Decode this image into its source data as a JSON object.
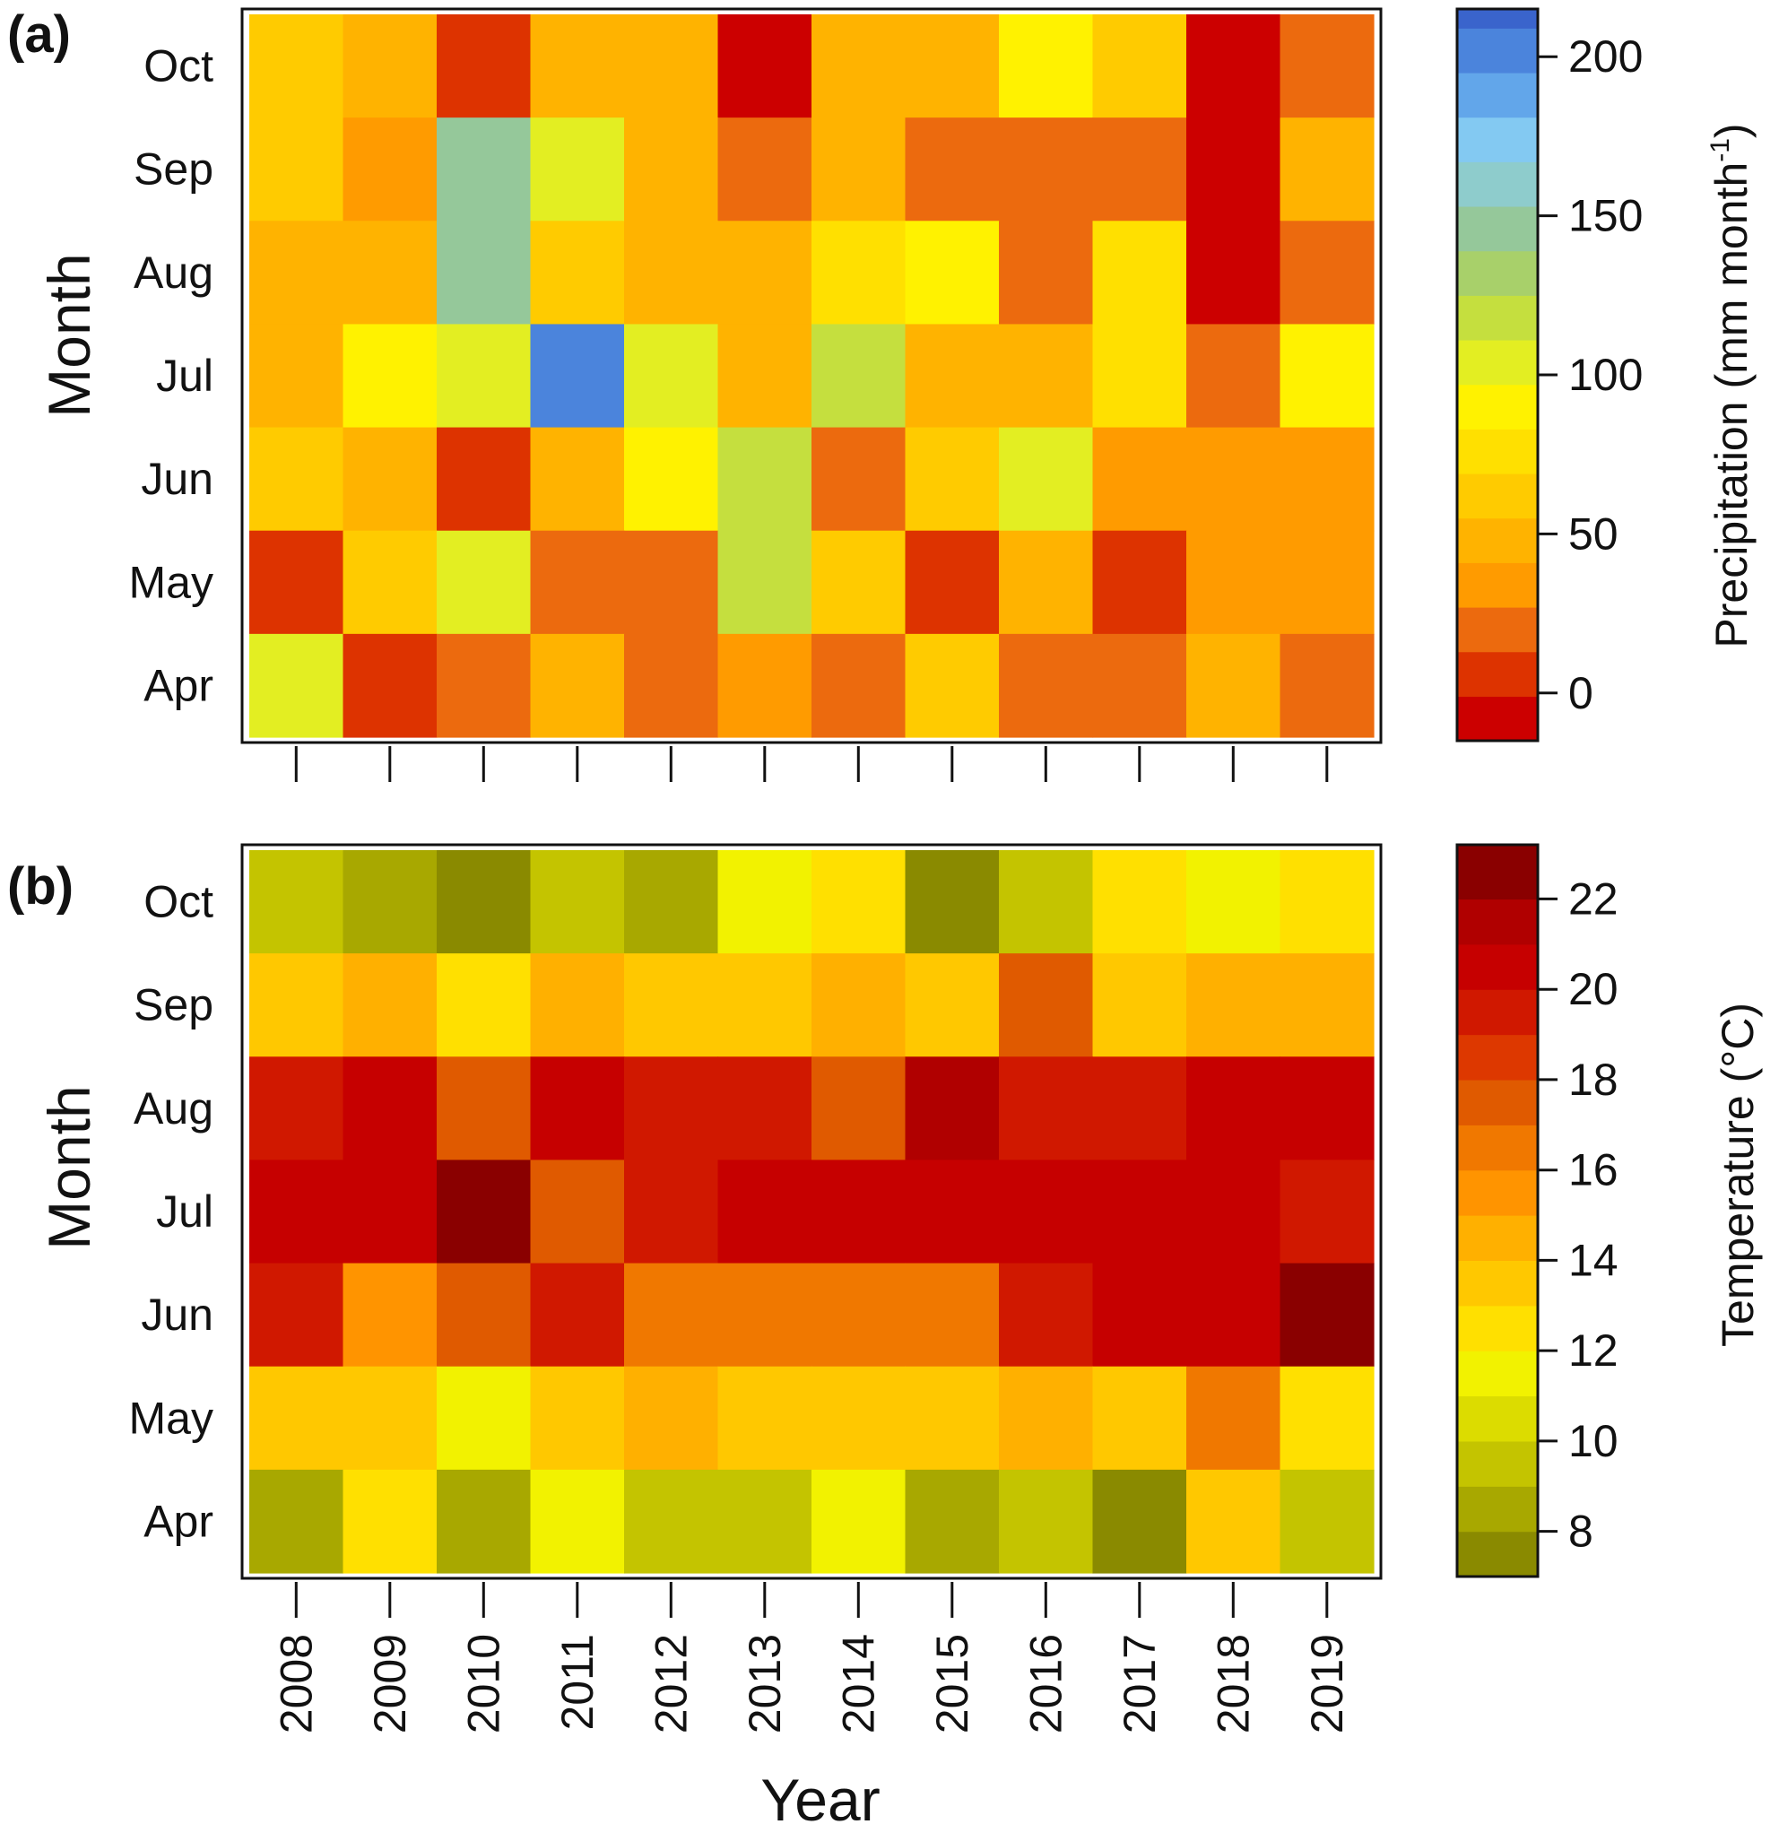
{
  "panels": [
    {
      "id": "a",
      "label": "(a)",
      "ylabel": "Month",
      "colorbar_title": "Precipitation (mm month",
      "colorbar_title_sup": "-1",
      "colorbar_title_tail": ")"
    },
    {
      "id": "b",
      "label": "(b)",
      "ylabel": "Month",
      "colorbar_title": "Temperature (°C)"
    }
  ],
  "xlabel": "Year",
  "chart_data": [
    {
      "type": "heatmap",
      "title": "",
      "xlabel": "Year",
      "ylabel": "Month",
      "x": [
        "2008",
        "2009",
        "2010",
        "2011",
        "2012",
        "2013",
        "2014",
        "2015",
        "2016",
        "2017",
        "2018",
        "2019"
      ],
      "y": [
        "Oct",
        "Sep",
        "Aug",
        "Jul",
        "Jun",
        "May",
        "Apr"
      ],
      "colorbar": {
        "label": "Precipitation (mm month-1)",
        "ticks": [
          "0",
          "50",
          "100",
          "150",
          "200"
        ],
        "tick_values": [
          0,
          50,
          100,
          150,
          200
        ],
        "range": [
          -15,
          215
        ],
        "bins": [
          {
            "lo": -15,
            "hi": -1,
            "color": "#cc0000"
          },
          {
            "lo": -1,
            "hi": 13,
            "color": "#dd3300"
          },
          {
            "lo": 13,
            "hi": 27,
            "color": "#ec6a0e"
          },
          {
            "lo": 27,
            "hi": 41,
            "color": "#ff9b00"
          },
          {
            "lo": 41,
            "hi": 55,
            "color": "#ffb300"
          },
          {
            "lo": 55,
            "hi": 69,
            "color": "#ffcb00"
          },
          {
            "lo": 69,
            "hi": 83,
            "color": "#ffe000"
          },
          {
            "lo": 83,
            "hi": 97,
            "color": "#fff200"
          },
          {
            "lo": 97,
            "hi": 111,
            "color": "#e3ee22"
          },
          {
            "lo": 111,
            "hi": 125,
            "color": "#c5df3e"
          },
          {
            "lo": 125,
            "hi": 139,
            "color": "#a8d06a"
          },
          {
            "lo": 139,
            "hi": 153,
            "color": "#95c89a"
          },
          {
            "lo": 153,
            "hi": 167,
            "color": "#8ecccc"
          },
          {
            "lo": 167,
            "hi": 181,
            "color": "#83c9f2"
          },
          {
            "lo": 181,
            "hi": 195,
            "color": "#62a6ea"
          },
          {
            "lo": 195,
            "hi": 209,
            "color": "#4b84dc"
          },
          {
            "lo": 209,
            "hi": 215,
            "color": "#3a64cc"
          }
        ]
      },
      "values": [
        [
          60,
          50,
          5,
          45,
          45,
          -10,
          45,
          50,
          90,
          55,
          -10,
          20
        ],
        [
          60,
          40,
          145,
          105,
          45,
          20,
          45,
          20,
          20,
          20,
          -10,
          45
        ],
        [
          50,
          50,
          145,
          60,
          45,
          45,
          70,
          90,
          20,
          70,
          -10,
          20
        ],
        [
          50,
          90,
          100,
          205,
          100,
          50,
          115,
          50,
          50,
          70,
          20,
          90
        ],
        [
          60,
          50,
          5,
          50,
          90,
          120,
          20,
          60,
          100,
          40,
          40,
          40
        ],
        [
          5,
          60,
          100,
          20,
          20,
          120,
          60,
          5,
          50,
          5,
          40,
          40
        ],
        [
          100,
          5,
          20,
          45,
          20,
          40,
          20,
          55,
          20,
          20,
          45,
          20
        ]
      ]
    },
    {
      "type": "heatmap",
      "title": "",
      "xlabel": "Year",
      "ylabel": "Month",
      "x": [
        "2008",
        "2009",
        "2010",
        "2011",
        "2012",
        "2013",
        "2014",
        "2015",
        "2016",
        "2017",
        "2018",
        "2019"
      ],
      "y": [
        "Oct",
        "Sep",
        "Aug",
        "Jul",
        "Jun",
        "May",
        "Apr"
      ],
      "colorbar": {
        "label": "Temperature (°C)",
        "ticks": [
          "8",
          "10",
          "12",
          "14",
          "16",
          "18",
          "20",
          "22"
        ],
        "tick_values": [
          8,
          10,
          12,
          14,
          16,
          18,
          20,
          22
        ],
        "range": [
          7.0,
          23.2
        ],
        "bins": [
          {
            "lo": 7.0,
            "hi": 8.0,
            "color": "#8a8a00"
          },
          {
            "lo": 8.0,
            "hi": 9.0,
            "color": "#a8a800"
          },
          {
            "lo": 9.0,
            "hi": 10.0,
            "color": "#c4c400"
          },
          {
            "lo": 10.0,
            "hi": 11.0,
            "color": "#dcdc00"
          },
          {
            "lo": 11.0,
            "hi": 12.0,
            "color": "#f2f200"
          },
          {
            "lo": 12.0,
            "hi": 13.0,
            "color": "#ffe000"
          },
          {
            "lo": 13.0,
            "hi": 14.0,
            "color": "#ffc800"
          },
          {
            "lo": 14.0,
            "hi": 15.0,
            "color": "#ffb000"
          },
          {
            "lo": 15.0,
            "hi": 16.0,
            "color": "#ff9400"
          },
          {
            "lo": 16.0,
            "hi": 17.0,
            "color": "#f07800"
          },
          {
            "lo": 17.0,
            "hi": 18.0,
            "color": "#e05a00"
          },
          {
            "lo": 18.0,
            "hi": 19.0,
            "color": "#dd3800"
          },
          {
            "lo": 19.0,
            "hi": 20.0,
            "color": "#d01800"
          },
          {
            "lo": 20.0,
            "hi": 21.0,
            "color": "#c60000"
          },
          {
            "lo": 21.0,
            "hi": 22.0,
            "color": "#b00000"
          },
          {
            "lo": 22.0,
            "hi": 23.2,
            "color": "#8a0000"
          }
        ]
      },
      "values": [
        [
          9.5,
          8.5,
          7.5,
          9.5,
          8.5,
          11.5,
          12.5,
          7.5,
          9.5,
          12.5,
          11.5,
          12.5
        ],
        [
          13.5,
          14.5,
          12.5,
          14.5,
          13.5,
          13.5,
          14.5,
          13.5,
          17.5,
          13.5,
          14.5,
          14.5
        ],
        [
          19.5,
          20.5,
          17.5,
          20.5,
          19.5,
          19.5,
          17.5,
          21.5,
          19.5,
          19.5,
          20.5,
          20.5
        ],
        [
          20.5,
          20.5,
          22.5,
          17.5,
          19.5,
          20.5,
          20.5,
          20.5,
          20.5,
          20.5,
          20.8,
          19.5
        ],
        [
          19.5,
          15.5,
          17.5,
          19.5,
          16.5,
          16.5,
          16.5,
          16.5,
          19.5,
          20.5,
          20.5,
          22.8
        ],
        [
          13.5,
          13.5,
          11.5,
          13.5,
          14.5,
          13.5,
          13.5,
          13.5,
          14.5,
          13.5,
          16.5,
          12.5
        ],
        [
          8.5,
          12.5,
          8.5,
          11.5,
          9.5,
          9.5,
          11.5,
          8.5,
          9.5,
          7.5,
          13.5,
          9.5
        ]
      ]
    }
  ]
}
